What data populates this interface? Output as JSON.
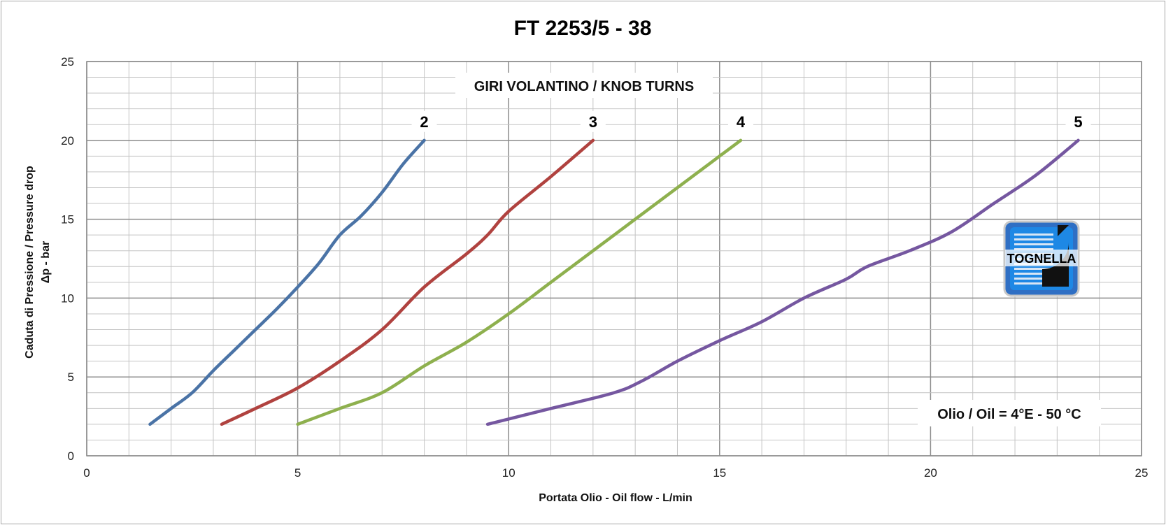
{
  "chart_data": {
    "type": "line",
    "title": "FT 2253/5 - 38",
    "xlabel": "Portata Olio - Oil flow  - L/min",
    "ylabel_line1": "Caduta di Pressione / Pressure drop",
    "ylabel_line2": "Δp - bar",
    "xlim": [
      0,
      25
    ],
    "ylim": [
      0,
      25
    ],
    "x_ticks": [
      "0",
      "5",
      "10",
      "15",
      "20",
      "25"
    ],
    "y_ticks": [
      "0",
      "5",
      "10",
      "15",
      "20",
      "25"
    ],
    "grid": true,
    "legend_title": "GIRI VOLANTINO / KNOB TURNS",
    "annotation": "Olio / Oil = 4°E - 50 °C",
    "logo_text": "TOGNELLA",
    "series": [
      {
        "name": "2",
        "color": "#4a73a6",
        "points": [
          [
            1.5,
            2
          ],
          [
            2.0,
            3.0
          ],
          [
            2.5,
            4.0
          ],
          [
            3.0,
            5.4
          ],
          [
            3.5,
            6.7
          ],
          [
            4.0,
            8.0
          ],
          [
            4.5,
            9.3
          ],
          [
            5.0,
            10.7
          ],
          [
            5.5,
            12.2
          ],
          [
            6.0,
            14.0
          ],
          [
            6.5,
            15.2
          ],
          [
            7.0,
            16.7
          ],
          [
            7.5,
            18.5
          ],
          [
            8.0,
            20
          ]
        ]
      },
      {
        "name": "3",
        "color": "#b0423f",
        "points": [
          [
            3.2,
            2
          ],
          [
            4.0,
            3.0
          ],
          [
            5.0,
            4.3
          ],
          [
            6.0,
            6.0
          ],
          [
            7.0,
            8.0
          ],
          [
            8.0,
            10.7
          ],
          [
            9.0,
            12.8
          ],
          [
            9.5,
            14.0
          ],
          [
            10.0,
            15.5
          ],
          [
            11.0,
            17.7
          ],
          [
            12.0,
            20
          ]
        ]
      },
      {
        "name": "4",
        "color": "#8eb04e",
        "points": [
          [
            5.0,
            2
          ],
          [
            6.0,
            3.0
          ],
          [
            7.0,
            4.0
          ],
          [
            8.0,
            5.7
          ],
          [
            9.0,
            7.2
          ],
          [
            10.0,
            9.0
          ],
          [
            11.0,
            11.0
          ],
          [
            12.0,
            13.0
          ],
          [
            13.0,
            15.0
          ],
          [
            14.0,
            17.0
          ],
          [
            15.0,
            19.0
          ],
          [
            15.5,
            20
          ]
        ]
      },
      {
        "name": "5",
        "color": "#7557a0",
        "points": [
          [
            9.5,
            2
          ],
          [
            11.0,
            3.0
          ],
          [
            12.5,
            4.0
          ],
          [
            13.2,
            4.8
          ],
          [
            14.0,
            6.0
          ],
          [
            15.0,
            7.3
          ],
          [
            16.0,
            8.5
          ],
          [
            17.0,
            10.0
          ],
          [
            18.0,
            11.2
          ],
          [
            18.5,
            12.0
          ],
          [
            19.5,
            13.0
          ],
          [
            20.5,
            14.2
          ],
          [
            21.5,
            16.0
          ],
          [
            22.5,
            17.8
          ],
          [
            23.5,
            20
          ]
        ]
      }
    ]
  }
}
